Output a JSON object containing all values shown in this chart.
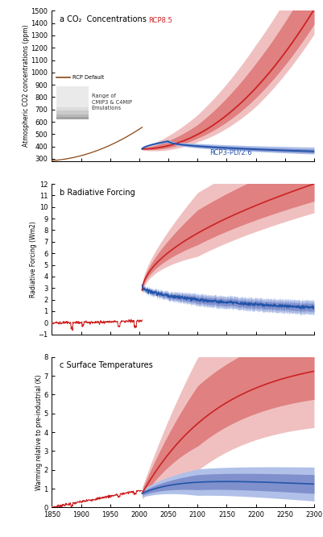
{
  "title_a": "a CO₂  Concentrations",
  "title_b": "b Radiative Forcing",
  "title_c": "c Surface Temperatures",
  "ylabel_a": "Atmospheric CO2 concentrations (ppm)",
  "ylabel_b": "Radiative Forcing (Wm2)",
  "ylabel_c": "Warming relative to pre-industrial (K)",
  "xlim": [
    1850,
    2300
  ],
  "xticks": [
    1850,
    1900,
    1950,
    2000,
    2050,
    2100,
    2150,
    2200,
    2250,
    2300
  ],
  "ylim_a": [
    280,
    1500
  ],
  "yticks_a": [
    300,
    400,
    500,
    600,
    700,
    800,
    900,
    1000,
    1100,
    1200,
    1300,
    1400,
    1500
  ],
  "ylim_b": [
    -1,
    12
  ],
  "yticks_b": [
    -1,
    0,
    1,
    2,
    3,
    4,
    5,
    6,
    7,
    8,
    9,
    10,
    11,
    12
  ],
  "ylim_c": [
    0,
    8
  ],
  "yticks_c": [
    0,
    1,
    2,
    3,
    4,
    5,
    6,
    7,
    8
  ],
  "red_color": "#cc2222",
  "red_fill_inner": "#e08080",
  "red_fill_outer": "#f0c0c0",
  "blue_color": "#2255aa",
  "blue_fill_inner": "#8090cc",
  "blue_fill_outer": "#b0c0e8",
  "legend_line_color": "#8B4513",
  "legend_gray_color": "#888888",
  "label_rcp85": "RCP8.5",
  "label_rcp26": "RCP3-PD/2.6",
  "label_default": "RCP Default",
  "label_range": "Range of\nCMIP3 & C4MIP\nEmulations",
  "bg_color": "#ffffff"
}
